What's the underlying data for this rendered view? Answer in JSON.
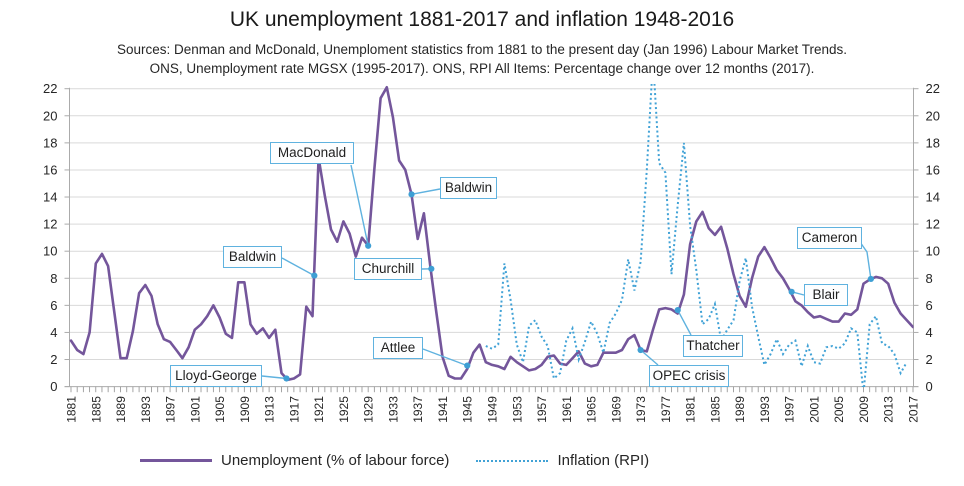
{
  "header": {
    "title": "UK unemployment 1881-2017 and inflation 1948-2016",
    "subtitle1": "Sources: Denman and McDonald, Unemploment statistics from 1881 to the present day (Jan 1996) Labour Market Trends.",
    "subtitle2": "ONS, Unemployment rate MGSX (1995-2017). ONS, RPI All Items: Percentage change over 12 months (2017)."
  },
  "chart_data": {
    "type": "line",
    "title": "UK unemployment 1881-2017 and inflation 1948-2016",
    "y_ticks": [
      "0",
      "2",
      "4",
      "6",
      "8",
      "10",
      "12",
      "14",
      "16",
      "18",
      "20",
      "22"
    ],
    "x_ticks": [
      "1881",
      "1885",
      "1889",
      "1893",
      "1897",
      "1901",
      "1905",
      "1909",
      "1913",
      "1917",
      "1921",
      "1925",
      "1929",
      "1933",
      "1937",
      "1941",
      "1945",
      "1949",
      "1953",
      "1957",
      "1961",
      "1965",
      "1969",
      "1973",
      "1977",
      "1981",
      "1985",
      "1989",
      "1993",
      "1997",
      "2001",
      "2005",
      "2009",
      "2013",
      "2017"
    ],
    "ylim": [
      0,
      22
    ],
    "xlim": [
      1881,
      2017
    ],
    "grid": true,
    "legend_position": "bottom",
    "series": [
      {
        "name": "Unemployment (% of labour force)",
        "style": "solid",
        "color": "#74569b",
        "start_year": 1881,
        "values": [
          3.4,
          2.7,
          2.4,
          4.0,
          9.1,
          9.8,
          8.9,
          5.5,
          2.1,
          2.1,
          4.1,
          6.9,
          7.5,
          6.7,
          4.6,
          3.5,
          3.3,
          2.7,
          2.1,
          2.9,
          4.2,
          4.6,
          5.2,
          6.0,
          5.1,
          3.9,
          3.6,
          7.7,
          7.7,
          4.6,
          3.9,
          4.3,
          3.6,
          4.2,
          1.0,
          0.5,
          0.6,
          0.9,
          5.9,
          5.2,
          16.9,
          14.1,
          11.6,
          10.7,
          12.2,
          11.3,
          9.6,
          11.0,
          10.4,
          16.1,
          21.3,
          22.1,
          19.9,
          16.7,
          16.0,
          14.2,
          10.9,
          12.8,
          9.0,
          5.5,
          2.2,
          0.8,
          0.6,
          0.6,
          1.3,
          2.5,
          3.1,
          1.8,
          1.6,
          1.5,
          1.3,
          2.2,
          1.8,
          1.5,
          1.2,
          1.3,
          1.6,
          2.2,
          2.3,
          1.7,
          1.6,
          2.1,
          2.6,
          1.7,
          1.5,
          1.6,
          2.5,
          2.5,
          2.5,
          2.7,
          3.5,
          3.8,
          2.7,
          2.6,
          4.2,
          5.7,
          5.8,
          5.7,
          5.4,
          6.8,
          10.5,
          12.2,
          12.9,
          11.7,
          11.2,
          11.8,
          10.2,
          8.3,
          6.7,
          5.9,
          8.0,
          9.6,
          10.3,
          9.5,
          8.6,
          8.0,
          7.2,
          6.3,
          6.0,
          5.5,
          5.1,
          5.2,
          5.0,
          4.8,
          4.8,
          5.4,
          5.3,
          5.7,
          7.6,
          7.9,
          8.1,
          8.0,
          7.6,
          6.2,
          5.4,
          4.9,
          4.4
        ]
      },
      {
        "name": "Inflation (RPI)",
        "style": "dotted",
        "color": "#41a2d6",
        "start_year": 1948,
        "values": [
          3.0,
          2.8,
          3.1,
          9.1,
          6.4,
          3.1,
          1.8,
          4.5,
          4.9,
          3.7,
          3.0,
          0.6,
          1.0,
          3.4,
          4.3,
          2.0,
          3.3,
          4.8,
          3.9,
          2.5,
          4.7,
          5.4,
          6.4,
          9.4,
          7.1,
          9.2,
          16.0,
          24.2,
          16.5,
          15.8,
          8.3,
          13.4,
          18.0,
          11.9,
          8.6,
          4.6,
          5.0,
          6.1,
          3.4,
          4.2,
          4.9,
          7.8,
          9.5,
          5.9,
          3.7,
          1.6,
          2.4,
          3.5,
          2.4,
          3.1,
          3.4,
          1.5,
          3.0,
          1.8,
          1.7,
          2.9,
          3.0,
          2.8,
          3.2,
          4.3,
          4.0,
          -0.5,
          4.6,
          5.2,
          3.2,
          3.0,
          2.4,
          1.0,
          1.8
        ]
      }
    ],
    "annotations": [
      {
        "label": "MacDonald",
        "year": 1929,
        "value": 10.4,
        "leader": [
          [
            351,
            165
          ]
        ]
      },
      {
        "label": "Baldwin",
        "year": 1936,
        "value": 14.2,
        "leader": [
          [
            440,
            189
          ]
        ]
      },
      {
        "label": "Baldwin",
        "year": 1920.3,
        "value": 8.2,
        "leader": [
          [
            282,
            258
          ]
        ]
      },
      {
        "label": "Churchill",
        "year": 1939.2,
        "value": 8.7,
        "leader": [
          [
            422,
            269
          ]
        ]
      },
      {
        "label": "Attlee",
        "year": 1945,
        "value": 1.55,
        "leader": [
          [
            423,
            349
          ]
        ]
      },
      {
        "label": "Lloyd-George",
        "year": 1915.8,
        "value": 0.6,
        "leader": [
          [
            262,
            376
          ]
        ]
      },
      {
        "label": "OPEC crisis",
        "year": 1973,
        "value": 2.7,
        "leader": [
          [
            658,
            365
          ]
        ]
      },
      {
        "label": "Thatcher",
        "year": 1979,
        "value": 5.65,
        "leader": [
          [
            691,
            335
          ]
        ]
      },
      {
        "label": "Blair",
        "year": 1997.4,
        "value": 7.0,
        "leader": [
          [
            804,
            295
          ]
        ]
      },
      {
        "label": "Cameron",
        "year": 2010.2,
        "value": 7.95,
        "leader": [
          [
            860,
            242
          ],
          [
            867,
            252
          ]
        ]
      }
    ],
    "legend": [
      {
        "label": "Unemployment (% of labour force)"
      },
      {
        "label": "Inflation (RPI)"
      }
    ],
    "colors": {
      "unemployment": "#74569b",
      "inflation": "#41a2d6",
      "callout_border": "#5fb2df",
      "callout_dot": "#3e9fd4",
      "grid": "#d9d9d9",
      "axis": "#ababab",
      "tick": "#9a9a9a",
      "text": "#262626"
    },
    "layout": {
      "x_left": 71,
      "x_right": 913,
      "axis_left": 69.5,
      "axis_right": 913.5,
      "y_zero": 386.6,
      "y_top": 88.7,
      "clip_top": 84,
      "tick_len_x": 5.6,
      "tick_len_y": 5,
      "vmax": 22,
      "year_min": 1881,
      "year_max": 2017
    }
  }
}
